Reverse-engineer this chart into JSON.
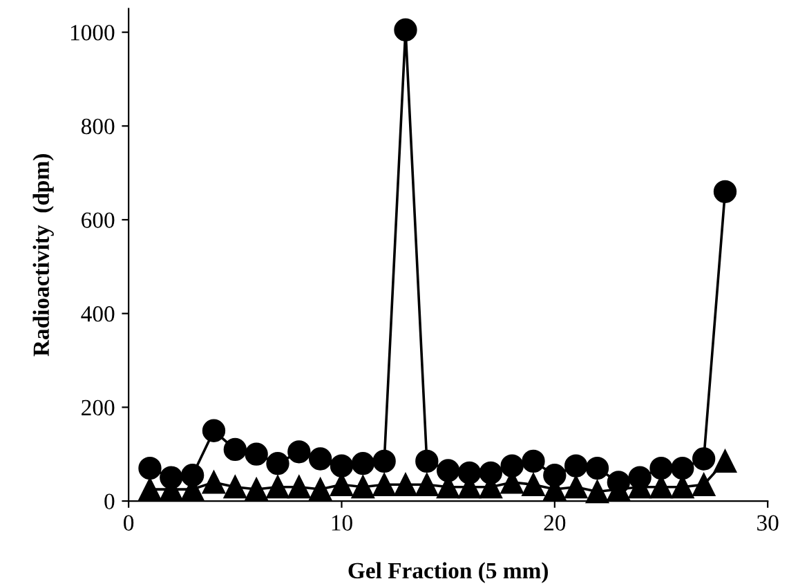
{
  "chart_data": {
    "type": "line",
    "xlabel": "Gel Fraction (5 mm)",
    "ylabel": "Radioactivity  (dpm)",
    "x": [
      1,
      2,
      3,
      4,
      5,
      6,
      7,
      8,
      9,
      10,
      11,
      12,
      13,
      14,
      15,
      16,
      17,
      18,
      19,
      20,
      21,
      22,
      23,
      24,
      25,
      26,
      27,
      28
    ],
    "series": [
      {
        "color": "#000000",
        "marker": "circle",
        "values": [
          70,
          50,
          55,
          150,
          110,
          100,
          80,
          105,
          90,
          75,
          80,
          85,
          1005,
          85,
          65,
          60,
          60,
          75,
          85,
          55,
          75,
          70,
          40,
          50,
          70,
          70,
          90,
          660
        ]
      },
      {
        "color": "#000000",
        "marker": "triangle",
        "values": [
          25,
          25,
          25,
          40,
          30,
          25,
          30,
          30,
          25,
          35,
          30,
          35,
          35,
          35,
          30,
          30,
          30,
          40,
          35,
          25,
          30,
          20,
          25,
          30,
          30,
          30,
          35,
          85
        ]
      }
    ],
    "xlim": [
      0,
      30
    ],
    "ylim": [
      0,
      1050
    ],
    "xticks": [
      0,
      10,
      20,
      30
    ],
    "yticks": [
      0,
      200,
      400,
      600,
      800,
      1000
    ],
    "grid": false,
    "legend": false
  }
}
